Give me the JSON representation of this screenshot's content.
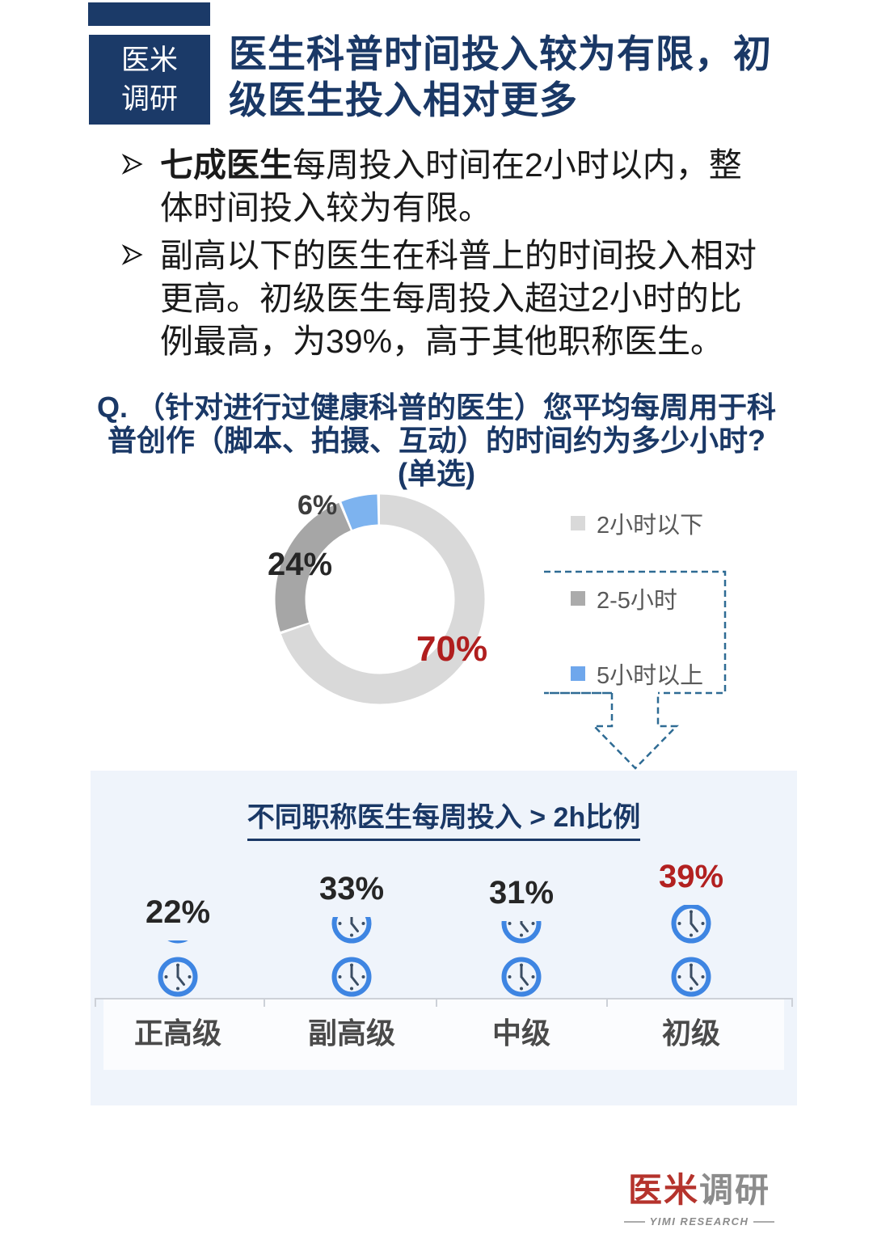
{
  "header": {
    "logo_line1": "医米",
    "logo_line2": "调研",
    "title_line1": "医生科普时间投入较为有限，初",
    "title_line2": "级医生投入相对更多"
  },
  "bullets": [
    {
      "lead": "七成医生",
      "text": "每周投入时间在2小时以内，整体时间投入较为有限。"
    },
    {
      "lead": "",
      "text": "副高以下的医生在科普上的时间投入相对更高。初级医生每周投入超过2小时的比例最高，为39%，高于其他职称医生。"
    }
  ],
  "question": {
    "line1": "Q.  （针对进行过健康科普的医生）您平均每周用于科",
    "line2": "普创作（脚本、拍摄、互动）的时间约为多少小时?",
    "line3": "(单选)"
  },
  "chart_data": [
    {
      "type": "pie",
      "subtype": "donut",
      "labels": [
        "2小时以下",
        "2-5小时",
        "5小时以上"
      ],
      "values": [
        70,
        24,
        6
      ],
      "colors": [
        "#D9D9D9",
        "#A6A6A6",
        "#7DB3EF"
      ],
      "value_labels": [
        "70%",
        "24%",
        "6%"
      ],
      "value_label_colors": [
        "#B01E1E",
        "#262626",
        "#3D3D3D"
      ],
      "start_angle": "top",
      "direction": "clockwise",
      "legend_position": "right",
      "legend_swatch_colors": [
        "#D9D9D9",
        "#ABABAB",
        "#6FA7EC"
      ],
      "legend_callout_note": "2-5小时 与 5小时以上 被虚线框圈出并以虚线箭头指向下方面板"
    },
    {
      "type": "bar",
      "subtype": "pictogram-clocks",
      "title": "不同职称医生每周投入 > 2h比例",
      "categories": [
        "正高级",
        "副高级",
        "中级",
        "初级"
      ],
      "values": [
        22,
        33,
        31,
        39
      ],
      "value_labels": [
        "22%",
        "33%",
        "31%",
        "39%"
      ],
      "value_label_colors": [
        "#262626",
        "#262626",
        "#262626",
        "#B22020"
      ],
      "icon": "clock",
      "icon_color": "#3E85E2",
      "icon_hand_color": "#3B4D63",
      "units_per_icon": 20
    }
  ],
  "footer_logo": {
    "cn_red": "医米",
    "cn_gray": "调研",
    "en": "YIMI RESEARCH"
  },
  "colors": {
    "navy": "#1A3866",
    "panel_bg": "#EFF4FB",
    "dashed_callout": "#2E6B94",
    "highlight_red": "#B01E1E"
  }
}
